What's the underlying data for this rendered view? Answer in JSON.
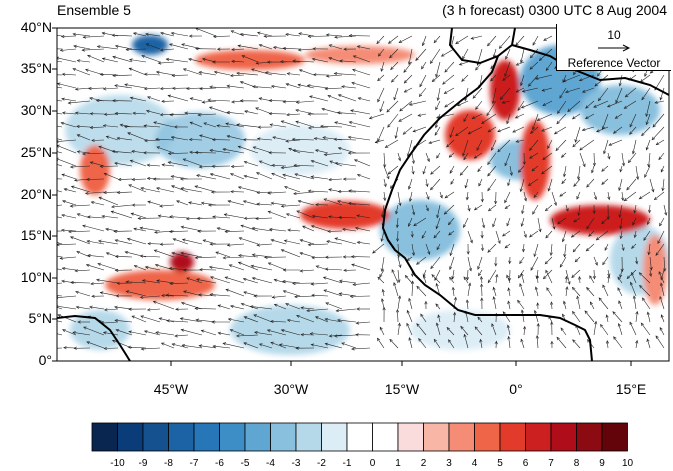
{
  "title_left": "Ensemble 5",
  "title_right": "(3 h forecast) 0300 UTC 8 Aug 2004",
  "lat_labels": [
    "40°N",
    "35°N",
    "30°N",
    "25°N",
    "20°N",
    "15°N",
    "10°N",
    "5°N",
    "0°"
  ],
  "lon_labels": [
    "45°W",
    "30°W",
    "15°W",
    "0°",
    "15°E"
  ],
  "reference_vector": {
    "magnitude": "10",
    "label": "Reference Vector"
  },
  "colorbar": {
    "labels": [
      "-10",
      "-9",
      "-8",
      "-7",
      "-6",
      "-5",
      "-4",
      "-3",
      "-2",
      "-1",
      "0",
      "1",
      "2",
      "3",
      "4",
      "5",
      "6",
      "7",
      "8",
      "9",
      "10"
    ],
    "colors": [
      "#08264f",
      "#0b3c7a",
      "#15508f",
      "#1c63a5",
      "#2676b8",
      "#3d8ec6",
      "#60a6d2",
      "#89c0de",
      "#b6d9ea",
      "#dcedf6",
      "#ffffff",
      "#ffffff",
      "#fbdcdc",
      "#f8b6a6",
      "#f48c76",
      "#ef6548",
      "#e33b2b",
      "#cc1f1f",
      "#b00d1a",
      "#8c0a12",
      "#620409"
    ]
  },
  "map": {
    "lat_range": [
      0,
      40
    ],
    "lon_range": [
      -57,
      19
    ],
    "field": "anomaly shading with wind vectors"
  }
}
